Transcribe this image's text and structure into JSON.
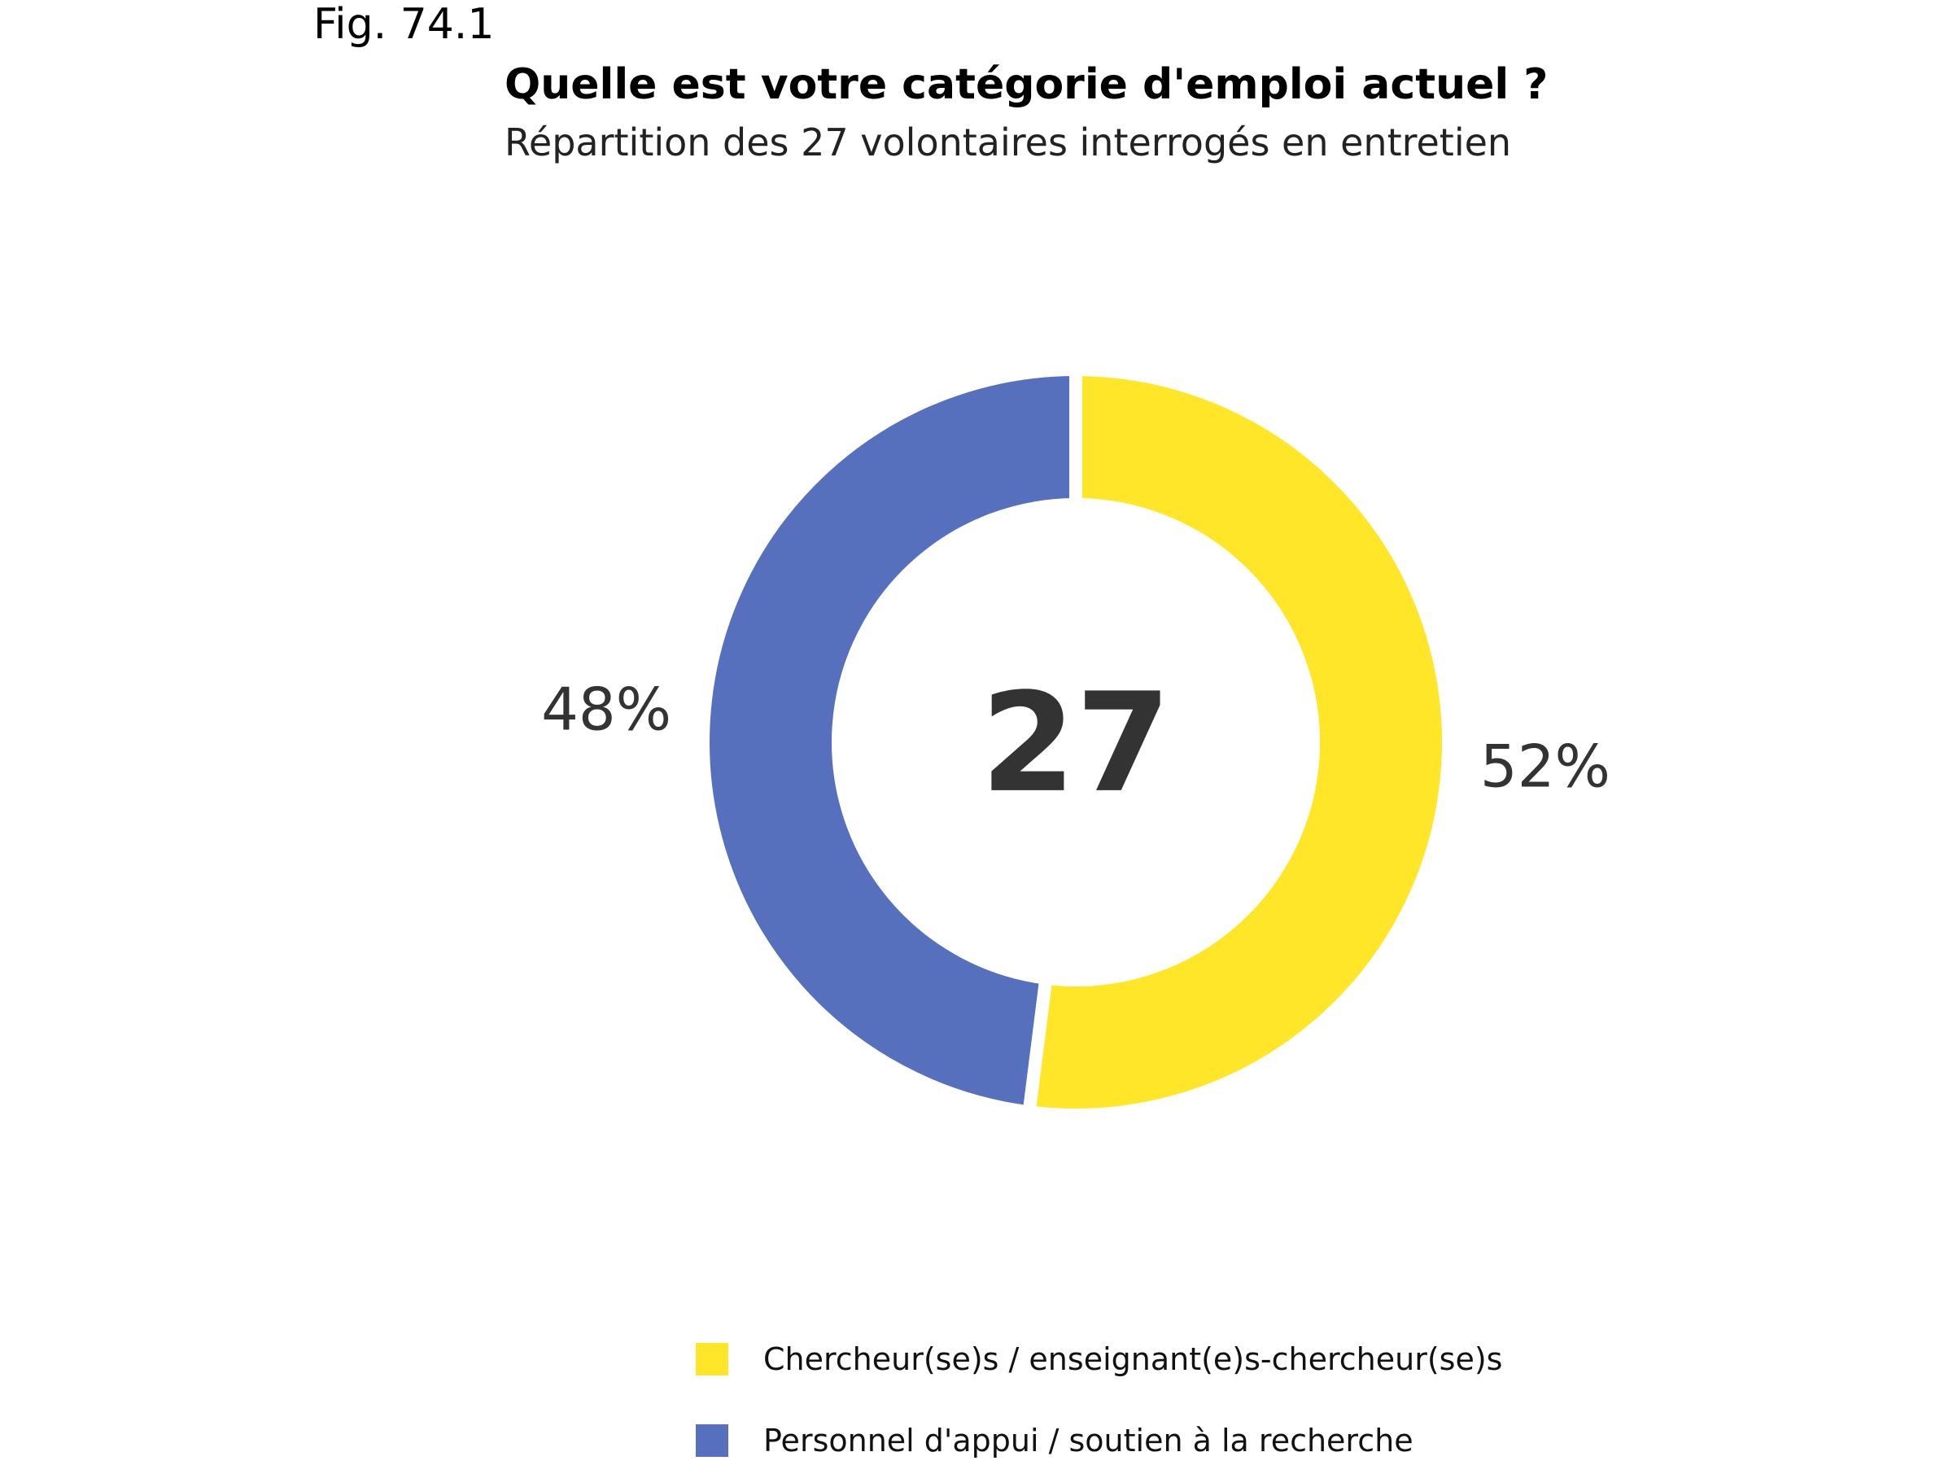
{
  "figure_label": "Fig. 74.1",
  "chart_data": {
    "type": "pie",
    "variant": "donut",
    "title": "Quelle est votre catégorie d'emploi actuel ?",
    "subtitle": "Répartition des 27 volontaires interrogés en entretien",
    "center_label": "27",
    "total": 27,
    "legend_position": "bottom",
    "slices": [
      {
        "name": "Chercheur(se)s / enseignant(e)s-chercheur(se)s",
        "value": 52,
        "label": "52%",
        "color": "#FFE628"
      },
      {
        "name": "Personnel d'appui / soutien à la recherche",
        "value": 48,
        "label": "48%",
        "color": "#5670BE"
      }
    ]
  }
}
